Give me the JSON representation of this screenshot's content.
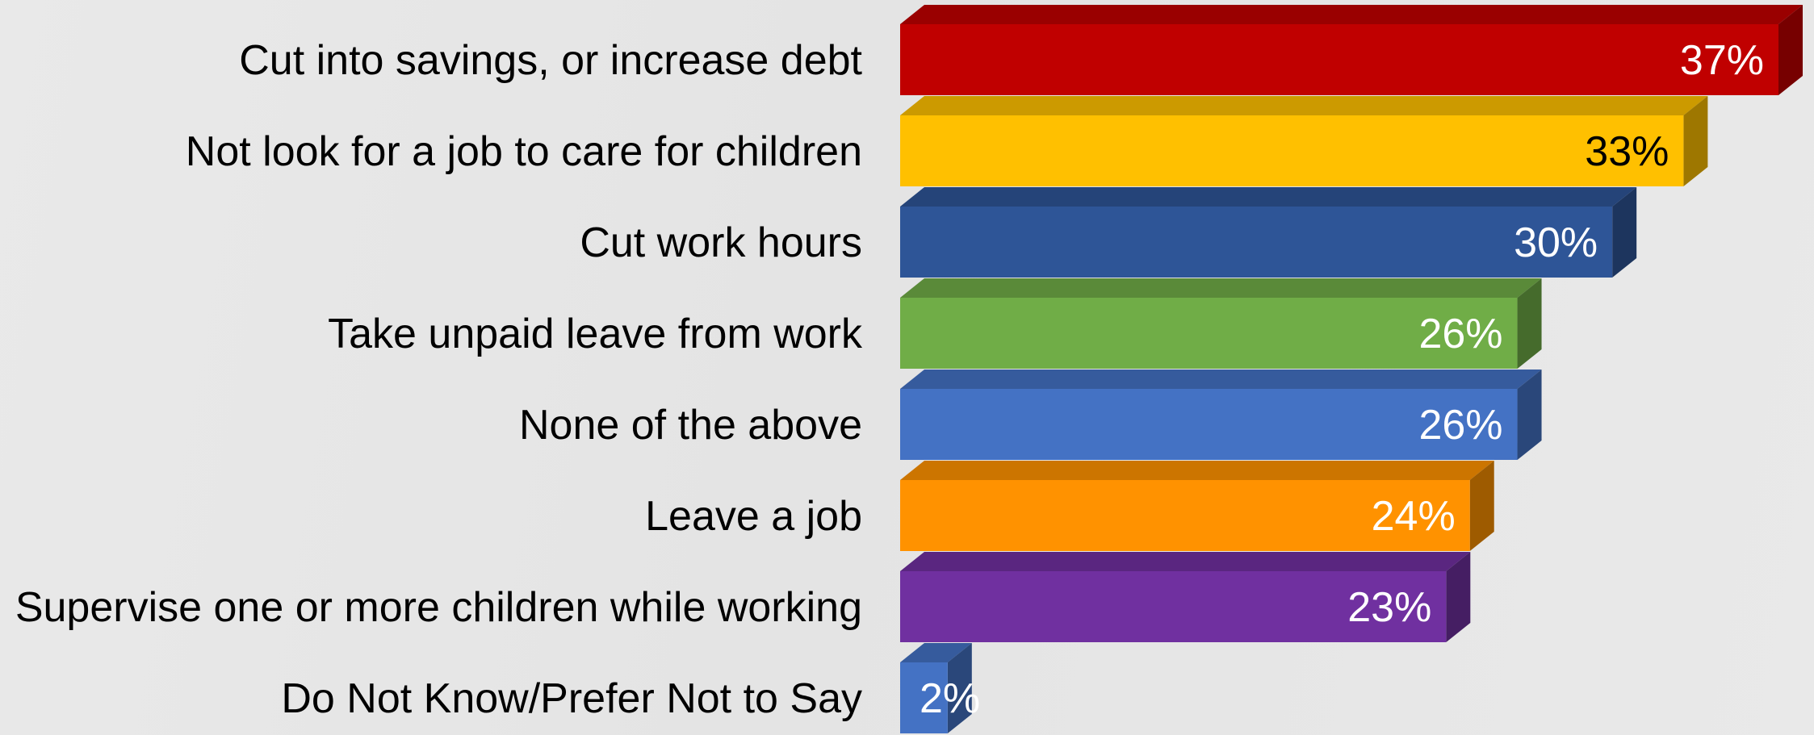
{
  "chart_data": {
    "type": "bar",
    "orientation": "horizontal",
    "style": "3d",
    "categories": [
      "Cut into savings, or increase debt",
      "Not look for a job to care for children",
      "Cut work hours",
      "Take unpaid leave from work",
      "None of the above",
      "Leave a job",
      "Supervise one or more children while working",
      "Do Not Know/Prefer Not to Say"
    ],
    "values": [
      37,
      33,
      30,
      26,
      26,
      24,
      23,
      2
    ],
    "value_labels": [
      "37%",
      "33%",
      "30%",
      "26%",
      "26%",
      "24%",
      "23%",
      "2%"
    ],
    "colors": [
      "#c00000",
      "#ffc000",
      "#2e5597",
      "#70ad47",
      "#4472c4",
      "#ff9200",
      "#7030a0",
      "#4472c4"
    ],
    "label_colors": [
      "#ffffff",
      "#000000",
      "#ffffff",
      "#ffffff",
      "#ffffff",
      "#ffffff",
      "#ffffff",
      "#ffffff"
    ],
    "xlim": [
      0,
      37
    ],
    "grid": false,
    "legend": "none",
    "title": "",
    "xlabel": "",
    "ylabel": ""
  }
}
